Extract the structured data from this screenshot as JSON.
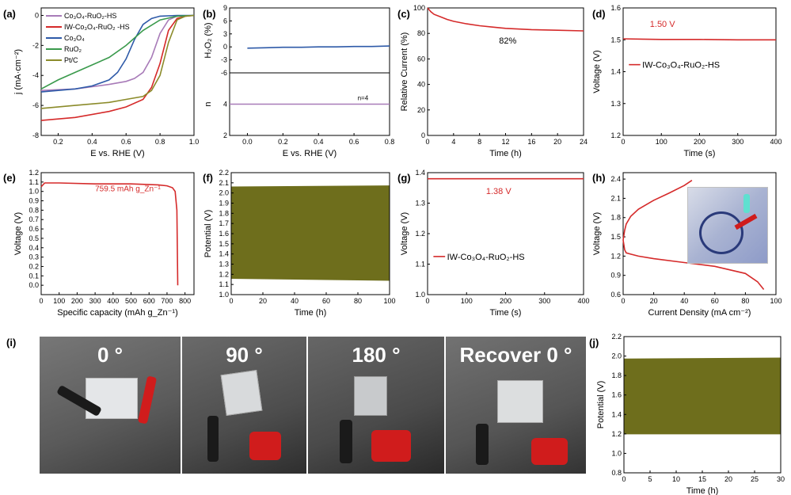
{
  "colors": {
    "red": "#d52a2a",
    "blue": "#2e5aa8",
    "green": "#3a9a4c",
    "olive": "#8b8b2a",
    "purple": "#a87bb8",
    "black": "#000000",
    "fill": "#6e6e1c"
  },
  "chart_data": [
    {
      "id": "a",
      "label": "(a)",
      "type": "line",
      "xlabel": "E vs. RHE (V)",
      "ylabel": "j (mA·cm⁻²)",
      "xlim": [
        0.1,
        1.0
      ],
      "ylim": [
        -8,
        0.5
      ],
      "xticks": [
        "0.2",
        "0.4",
        "0.6",
        "0.8",
        "1.0"
      ],
      "yticks": [
        "0",
        "-2",
        "-4",
        "-6",
        "-8"
      ],
      "legend": [
        "Co₃O₄-RuO₂-HS",
        "IW-Co₃O₄-RuO₂ -HS",
        "Co₃O₄",
        "RuO₂",
        "Pt/C"
      ],
      "series": [
        {
          "name": "Co₃O₄-RuO₂-HS",
          "color": "purple",
          "x": [
            0.1,
            0.3,
            0.5,
            0.6,
            0.65,
            0.7,
            0.75,
            0.8,
            0.85,
            0.9,
            1.0
          ],
          "y": [
            -5.0,
            -4.9,
            -4.6,
            -4.4,
            -4.2,
            -3.8,
            -2.8,
            -1.2,
            -0.3,
            -0.05,
            0
          ]
        },
        {
          "name": "IW-Co₃O₄-RuO₂ -HS",
          "color": "red",
          "x": [
            0.1,
            0.3,
            0.5,
            0.6,
            0.7,
            0.75,
            0.8,
            0.85,
            0.9,
            0.95,
            1.0
          ],
          "y": [
            -7.0,
            -6.8,
            -6.4,
            -6.1,
            -5.6,
            -4.8,
            -3.2,
            -1.0,
            -0.2,
            -0.05,
            0
          ]
        },
        {
          "name": "Co₃O₄",
          "color": "blue",
          "x": [
            0.1,
            0.2,
            0.3,
            0.4,
            0.5,
            0.55,
            0.6,
            0.65,
            0.7,
            0.75,
            0.8,
            0.9,
            1.0
          ],
          "y": [
            -5.1,
            -5.0,
            -4.9,
            -4.7,
            -4.3,
            -3.8,
            -2.9,
            -1.6,
            -0.6,
            -0.2,
            -0.05,
            0,
            0
          ]
        },
        {
          "name": "RuO₂",
          "color": "green",
          "x": [
            0.1,
            0.2,
            0.3,
            0.4,
            0.5,
            0.6,
            0.7,
            0.8,
            0.9,
            1.0
          ],
          "y": [
            -4.9,
            -4.3,
            -3.8,
            -3.3,
            -2.8,
            -2.0,
            -1.0,
            -0.3,
            -0.05,
            0
          ]
        },
        {
          "name": "Pt/C",
          "color": "olive",
          "x": [
            0.1,
            0.3,
            0.5,
            0.6,
            0.7,
            0.75,
            0.8,
            0.85,
            0.9,
            0.95,
            1.0
          ],
          "y": [
            -6.2,
            -6.0,
            -5.8,
            -5.6,
            -5.4,
            -5.0,
            -4.0,
            -1.8,
            -0.3,
            -0.05,
            0
          ]
        }
      ]
    },
    {
      "id": "b",
      "label": "(b)",
      "type": "line",
      "xlabel": "E vs. RHE (V)",
      "xlim": [
        -0.1,
        0.8
      ],
      "xticks": [
        "0.0",
        "0.2",
        "0.4",
        "0.6",
        "0.8"
      ],
      "top": {
        "ylabel": "H₂O₂ (%)",
        "ylim": [
          -6,
          9
        ],
        "yticks": [
          "9",
          "6",
          "3",
          "0",
          "-3",
          "-6"
        ],
        "series": [
          {
            "color": "blue",
            "x": [
              0,
              0.1,
              0.2,
              0.3,
              0.4,
              0.5,
              0.6,
              0.7,
              0.8
            ],
            "y": [
              -0.3,
              -0.2,
              -0.1,
              -0.1,
              0,
              0,
              0.1,
              0.1,
              0.2
            ]
          }
        ]
      },
      "bottom": {
        "ylabel": "n",
        "ylim": [
          2,
          6
        ],
        "yticks": [
          "4",
          "2"
        ],
        "annotation": "n=4",
        "series": [
          {
            "color": "purple",
            "x": [
              -0.1,
              0.8
            ],
            "y": [
              4,
              4
            ]
          }
        ]
      }
    },
    {
      "id": "c",
      "label": "(c)",
      "type": "line",
      "xlabel": "Time (h)",
      "ylabel": "Relative Current (%)",
      "xlim": [
        0,
        24
      ],
      "ylim": [
        0,
        100
      ],
      "xticks": [
        "0",
        "4",
        "8",
        "12",
        "16",
        "20",
        "24"
      ],
      "yticks": [
        "0",
        "20",
        "40",
        "60",
        "80",
        "100"
      ],
      "annotation": "82%",
      "series": [
        {
          "color": "red",
          "x": [
            0,
            0.5,
            1,
            2,
            3,
            4,
            6,
            8,
            10,
            12,
            16,
            20,
            24
          ],
          "y": [
            100,
            97,
            95,
            93,
            91,
            89.5,
            87.5,
            86,
            85,
            84,
            83,
            82.5,
            82
          ]
        }
      ]
    },
    {
      "id": "d",
      "label": "(d)",
      "type": "line",
      "xlabel": "Time (s)",
      "ylabel": "Voltage (V)",
      "xlim": [
        0,
        400
      ],
      "ylim": [
        1.2,
        1.6
      ],
      "xticks": [
        "0",
        "100",
        "200",
        "300",
        "400"
      ],
      "yticks": [
        "1.2",
        "1.3",
        "1.4",
        "1.5",
        "1.6"
      ],
      "annotation": "1.50 V",
      "legend": [
        "IW-Co₃O₄-RuO₂-HS"
      ],
      "series": [
        {
          "name": "IW-Co₃O₄-RuO₂-HS",
          "color": "red",
          "x": [
            0,
            50,
            100,
            200,
            300,
            400
          ],
          "y": [
            1.503,
            1.502,
            1.501,
            1.501,
            1.5,
            1.5
          ]
        }
      ]
    },
    {
      "id": "e",
      "label": "(e)",
      "type": "line",
      "xlabel": "Specific capacity (mAh g_Zn⁻¹)",
      "ylabel": "Voltage (V)",
      "xlim": [
        0,
        850
      ],
      "ylim": [
        -0.1,
        1.2
      ],
      "xticks": [
        "0",
        "100",
        "200",
        "300",
        "400",
        "500",
        "600",
        "700",
        "800"
      ],
      "yticks": [
        "0.0",
        "0.1",
        "0.2",
        "0.3",
        "0.4",
        "0.5",
        "0.6",
        "0.7",
        "0.8",
        "0.9",
        "1.0",
        "1.1",
        "1.2"
      ],
      "annotation": "759.5 mAh g_Zn⁻¹",
      "series": [
        {
          "color": "red",
          "x": [
            0,
            20,
            100,
            300,
            500,
            650,
            700,
            730,
            745,
            750,
            755,
            759.5
          ],
          "y": [
            1.05,
            1.09,
            1.09,
            1.08,
            1.08,
            1.07,
            1.06,
            1.04,
            1.0,
            0.9,
            0.8,
            0
          ]
        }
      ]
    },
    {
      "id": "f",
      "label": "(f)",
      "type": "area",
      "xlabel": "Time (h)",
      "ylabel": "Potential (V)",
      "xlim": [
        0,
        100
      ],
      "ylim": [
        1.0,
        2.2
      ],
      "xticks": [
        "0",
        "20",
        "40",
        "60",
        "80",
        "100"
      ],
      "yticks": [
        "1.0",
        "1.1",
        "1.2",
        "1.3",
        "1.4",
        "1.5",
        "1.6",
        "1.7",
        "1.8",
        "1.9",
        "2.0",
        "2.1",
        "2.2"
      ],
      "series": [
        {
          "color": "fill",
          "x": [
            0,
            100
          ],
          "upper": [
            2.06,
            2.07
          ],
          "lower": [
            1.16,
            1.14
          ]
        }
      ]
    },
    {
      "id": "g",
      "label": "(g)",
      "type": "line",
      "xlabel": "Time (s)",
      "ylabel": "Voltage (V)",
      "xlim": [
        0,
        400
      ],
      "ylim": [
        1.0,
        1.4
      ],
      "xticks": [
        "0",
        "100",
        "200",
        "300",
        "400"
      ],
      "yticks": [
        "1.0",
        "1.1",
        "1.2",
        "1.3",
        "1.4"
      ],
      "annotation": "1.38 V",
      "legend": [
        "IW-Co₃O₄-RuO₂-HS"
      ],
      "series": [
        {
          "name": "IW-Co₃O₄-RuO₂-HS",
          "color": "red",
          "x": [
            0,
            100,
            200,
            300,
            400
          ],
          "y": [
            1.38,
            1.38,
            1.38,
            1.38,
            1.38
          ]
        }
      ]
    },
    {
      "id": "h",
      "label": "(h)",
      "type": "line",
      "xlabel": "Current Density (mA cm⁻²)",
      "ylabel": "Voltage (V)",
      "xlim": [
        0,
        100
      ],
      "ylim": [
        0.6,
        2.5
      ],
      "xticks": [
        "0",
        "20",
        "40",
        "60",
        "80",
        "100"
      ],
      "yticks": [
        "0.6",
        "0.9",
        "1.2",
        "1.5",
        "1.8",
        "2.1",
        "2.4"
      ],
      "series": [
        {
          "name": "charge",
          "color": "red",
          "x": [
            0,
            1,
            2,
            5,
            10,
            20,
            30,
            40,
            45
          ],
          "y": [
            1.45,
            1.6,
            1.7,
            1.82,
            1.93,
            2.07,
            2.18,
            2.3,
            2.38
          ]
        },
        {
          "name": "discharge",
          "color": "red",
          "x": [
            0,
            1,
            2,
            5,
            10,
            20,
            40,
            60,
            80,
            88,
            92
          ],
          "y": [
            1.45,
            1.3,
            1.25,
            1.23,
            1.2,
            1.16,
            1.1,
            1.04,
            0.93,
            0.8,
            0.68
          ]
        }
      ]
    },
    {
      "id": "j",
      "label": "(j)",
      "type": "area",
      "xlabel": "Time (h)",
      "ylabel": "Potential (V)",
      "xlim": [
        0,
        30
      ],
      "ylim": [
        0.8,
        2.2
      ],
      "xticks": [
        "0",
        "5",
        "10",
        "15",
        "20",
        "25",
        "30"
      ],
      "yticks": [
        "0.8",
        "1.0",
        "1.2",
        "1.4",
        "1.6",
        "1.8",
        "2.0",
        "2.2"
      ],
      "series": [
        {
          "color": "fill",
          "x": [
            0,
            30
          ],
          "upper": [
            1.97,
            1.98
          ],
          "lower": [
            1.2,
            1.2
          ]
        }
      ]
    }
  ],
  "photos": {
    "label": "(i)",
    "captions": [
      "0 °",
      "90 °",
      "180 °",
      "Recover 0 °"
    ]
  }
}
